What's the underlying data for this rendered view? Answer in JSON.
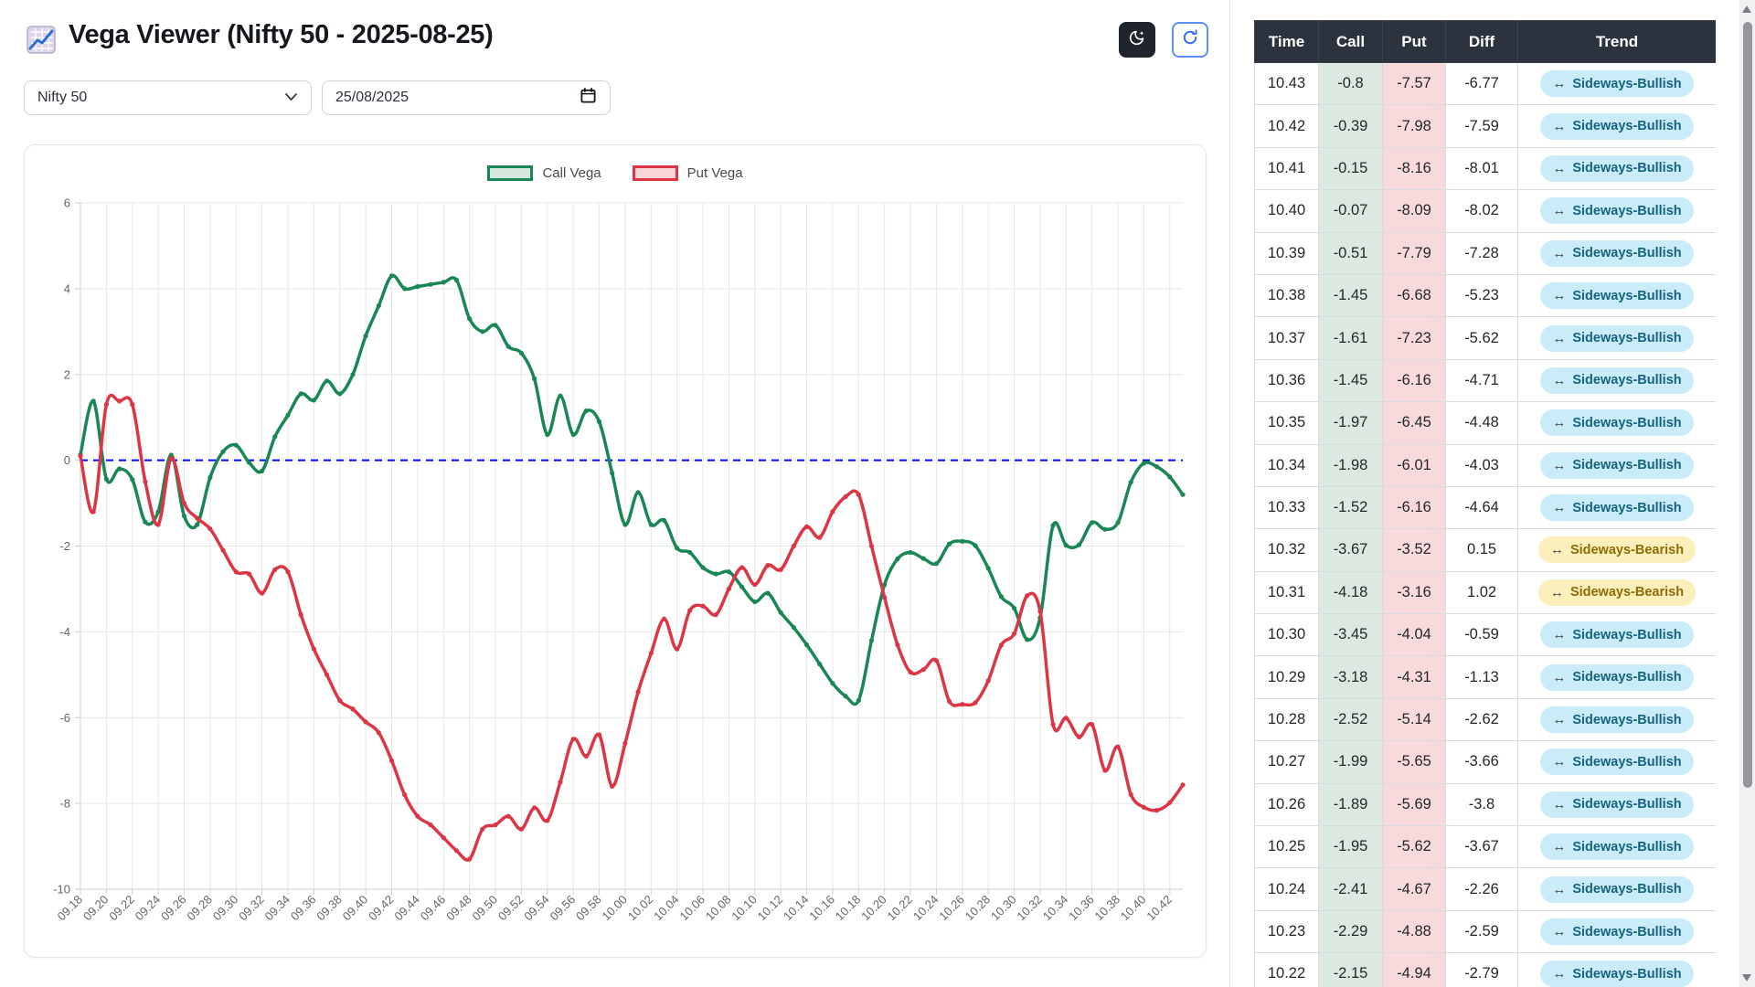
{
  "header": {
    "title": "Vega Viewer (Nifty 50 - 2025-08-25)",
    "icons": {
      "app": "chart-increasing-emoji",
      "dark_mode": "moon-stars-icon",
      "refresh": "refresh-icon"
    }
  },
  "controls": {
    "symbol_select": {
      "value": "Nifty 50"
    },
    "date_input": {
      "value": "25/08/2025"
    }
  },
  "colors": {
    "green": "#198754",
    "green_light": "#d6e8dd",
    "red": "#dc3545",
    "red_light": "#f7d5d8",
    "zero_line": "#0008ff",
    "thead_bg": "#2d333e",
    "call_cell_bg": "#dbe9e1",
    "put_cell_bg": "#f8d9dc",
    "badge_bullish_bg": "#c9ecf8",
    "badge_bullish_text": "#17637f",
    "badge_bearish_bg": "#fcefbb",
    "badge_bearish_text": "#8d6c08"
  },
  "chart_data": {
    "type": "line",
    "title": "",
    "xlabel": "",
    "ylabel": "",
    "ylim": [
      -10,
      6
    ],
    "ytick_step": 2,
    "x_tick_every": 2,
    "grid": true,
    "legend_position": "top-center",
    "zero_line": {
      "y": 0,
      "style": "dashed",
      "color": "#0008ff"
    },
    "x": [
      "09.18",
      "09.19",
      "09.20",
      "09.21",
      "09.22",
      "09.23",
      "09.24",
      "09.25",
      "09.26",
      "09.27",
      "09.28",
      "09.29",
      "09.30",
      "09.31",
      "09.32",
      "09.33",
      "09.34",
      "09.35",
      "09.36",
      "09.37",
      "09.38",
      "09.39",
      "09.40",
      "09.41",
      "09.42",
      "09.43",
      "09.44",
      "09.45",
      "09.46",
      "09.47",
      "09.48",
      "09.49",
      "09.50",
      "09.51",
      "09.52",
      "09.53",
      "09.54",
      "09.55",
      "09.56",
      "09.57",
      "09.58",
      "09.59",
      "10.00",
      "10.01",
      "10.02",
      "10.03",
      "10.04",
      "10.05",
      "10.06",
      "10.07",
      "10.08",
      "10.09",
      "10.10",
      "10.11",
      "10.12",
      "10.13",
      "10.14",
      "10.15",
      "10.16",
      "10.17",
      "10.18",
      "10.19",
      "10.20",
      "10.21",
      "10.22",
      "10.23",
      "10.24",
      "10.25",
      "10.26",
      "10.27",
      "10.28",
      "10.29",
      "10.30",
      "10.31",
      "10.32",
      "10.33",
      "10.34",
      "10.35",
      "10.36",
      "10.37",
      "10.38",
      "10.39",
      "10.40",
      "10.41",
      "10.42",
      "10.43"
    ],
    "series": [
      {
        "name": "Call Vega",
        "color": "#198754",
        "values": [
          0.13,
          1.38,
          -0.44,
          -0.2,
          -0.45,
          -1.44,
          -1.2,
          0.12,
          -1.3,
          -1.5,
          -0.4,
          0.2,
          0.35,
          -0.05,
          -0.25,
          0.55,
          1.05,
          1.55,
          1.4,
          1.85,
          1.55,
          2.0,
          2.9,
          3.6,
          4.3,
          4.0,
          4.05,
          4.1,
          4.15,
          4.2,
          3.3,
          3.0,
          3.15,
          2.65,
          2.5,
          1.9,
          0.6,
          1.5,
          0.6,
          1.15,
          0.9,
          -0.3,
          -1.5,
          -0.75,
          -1.5,
          -1.4,
          -2.05,
          -2.15,
          -2.5,
          -2.65,
          -2.6,
          -2.95,
          -3.3,
          -3.1,
          -3.55,
          -3.9,
          -4.3,
          -4.75,
          -5.2,
          -5.5,
          -5.6,
          -4.2,
          -2.9,
          -2.3,
          -2.15,
          -2.29,
          -2.41,
          -1.95,
          -1.89,
          -1.99,
          -2.52,
          -3.18,
          -3.45,
          -4.18,
          -3.67,
          -1.52,
          -1.98,
          -1.97,
          -1.45,
          -1.61,
          -1.45,
          -0.51,
          -0.07,
          -0.15,
          -0.39,
          -0.8
        ]
      },
      {
        "name": "Put Vega",
        "color": "#dc3545",
        "values": [
          0.1,
          -1.2,
          1.3,
          1.38,
          1.3,
          -0.5,
          -1.5,
          0.05,
          -1.0,
          -1.35,
          -1.6,
          -2.1,
          -2.6,
          -2.65,
          -3.1,
          -2.55,
          -2.6,
          -3.6,
          -4.4,
          -5.0,
          -5.6,
          -5.8,
          -6.1,
          -6.35,
          -7.0,
          -7.8,
          -8.3,
          -8.5,
          -8.8,
          -9.1,
          -9.3,
          -8.6,
          -8.5,
          -8.3,
          -8.6,
          -8.1,
          -8.4,
          -7.5,
          -6.5,
          -6.9,
          -6.4,
          -7.6,
          -6.6,
          -5.4,
          -4.5,
          -3.7,
          -4.4,
          -3.5,
          -3.4,
          -3.6,
          -3.0,
          -2.5,
          -2.9,
          -2.45,
          -2.55,
          -2.0,
          -1.55,
          -1.8,
          -1.2,
          -0.85,
          -0.8,
          -2.0,
          -3.2,
          -4.3,
          -4.94,
          -4.88,
          -4.67,
          -5.62,
          -5.69,
          -5.65,
          -5.14,
          -4.31,
          -4.04,
          -3.16,
          -3.52,
          -6.16,
          -6.01,
          -6.45,
          -6.16,
          -7.23,
          -6.68,
          -7.79,
          -8.09,
          -8.16,
          -7.98,
          -7.57
        ]
      }
    ]
  },
  "table": {
    "columns": [
      "Time",
      "Call",
      "Put",
      "Diff",
      "Trend"
    ],
    "trend_arrow": "↔",
    "rows": [
      {
        "time": "10.43",
        "call": "-0.8",
        "put": "-7.57",
        "diff": "-6.77",
        "trend": "Sideways-Bullish",
        "trend_type": "bullish"
      },
      {
        "time": "10.42",
        "call": "-0.39",
        "put": "-7.98",
        "diff": "-7.59",
        "trend": "Sideways-Bullish",
        "trend_type": "bullish"
      },
      {
        "time": "10.41",
        "call": "-0.15",
        "put": "-8.16",
        "diff": "-8.01",
        "trend": "Sideways-Bullish",
        "trend_type": "bullish"
      },
      {
        "time": "10.40",
        "call": "-0.07",
        "put": "-8.09",
        "diff": "-8.02",
        "trend": "Sideways-Bullish",
        "trend_type": "bullish"
      },
      {
        "time": "10.39",
        "call": "-0.51",
        "put": "-7.79",
        "diff": "-7.28",
        "trend": "Sideways-Bullish",
        "trend_type": "bullish"
      },
      {
        "time": "10.38",
        "call": "-1.45",
        "put": "-6.68",
        "diff": "-5.23",
        "trend": "Sideways-Bullish",
        "trend_type": "bullish"
      },
      {
        "time": "10.37",
        "call": "-1.61",
        "put": "-7.23",
        "diff": "-5.62",
        "trend": "Sideways-Bullish",
        "trend_type": "bullish"
      },
      {
        "time": "10.36",
        "call": "-1.45",
        "put": "-6.16",
        "diff": "-4.71",
        "trend": "Sideways-Bullish",
        "trend_type": "bullish"
      },
      {
        "time": "10.35",
        "call": "-1.97",
        "put": "-6.45",
        "diff": "-4.48",
        "trend": "Sideways-Bullish",
        "trend_type": "bullish"
      },
      {
        "time": "10.34",
        "call": "-1.98",
        "put": "-6.01",
        "diff": "-4.03",
        "trend": "Sideways-Bullish",
        "trend_type": "bullish"
      },
      {
        "time": "10.33",
        "call": "-1.52",
        "put": "-6.16",
        "diff": "-4.64",
        "trend": "Sideways-Bullish",
        "trend_type": "bullish"
      },
      {
        "time": "10.32",
        "call": "-3.67",
        "put": "-3.52",
        "diff": "0.15",
        "trend": "Sideways-Bearish",
        "trend_type": "bearish"
      },
      {
        "time": "10.31",
        "call": "-4.18",
        "put": "-3.16",
        "diff": "1.02",
        "trend": "Sideways-Bearish",
        "trend_type": "bearish"
      },
      {
        "time": "10.30",
        "call": "-3.45",
        "put": "-4.04",
        "diff": "-0.59",
        "trend": "Sideways-Bullish",
        "trend_type": "bullish"
      },
      {
        "time": "10.29",
        "call": "-3.18",
        "put": "-4.31",
        "diff": "-1.13",
        "trend": "Sideways-Bullish",
        "trend_type": "bullish"
      },
      {
        "time": "10.28",
        "call": "-2.52",
        "put": "-5.14",
        "diff": "-2.62",
        "trend": "Sideways-Bullish",
        "trend_type": "bullish"
      },
      {
        "time": "10.27",
        "call": "-1.99",
        "put": "-5.65",
        "diff": "-3.66",
        "trend": "Sideways-Bullish",
        "trend_type": "bullish"
      },
      {
        "time": "10.26",
        "call": "-1.89",
        "put": "-5.69",
        "diff": "-3.8",
        "trend": "Sideways-Bullish",
        "trend_type": "bullish"
      },
      {
        "time": "10.25",
        "call": "-1.95",
        "put": "-5.62",
        "diff": "-3.67",
        "trend": "Sideways-Bullish",
        "trend_type": "bullish"
      },
      {
        "time": "10.24",
        "call": "-2.41",
        "put": "-4.67",
        "diff": "-2.26",
        "trend": "Sideways-Bullish",
        "trend_type": "bullish"
      },
      {
        "time": "10.23",
        "call": "-2.29",
        "put": "-4.88",
        "diff": "-2.59",
        "trend": "Sideways-Bullish",
        "trend_type": "bullish"
      },
      {
        "time": "10.22",
        "call": "-2.15",
        "put": "-4.94",
        "diff": "-2.79",
        "trend": "Sideways-Bullish",
        "trend_type": "bullish"
      }
    ]
  }
}
